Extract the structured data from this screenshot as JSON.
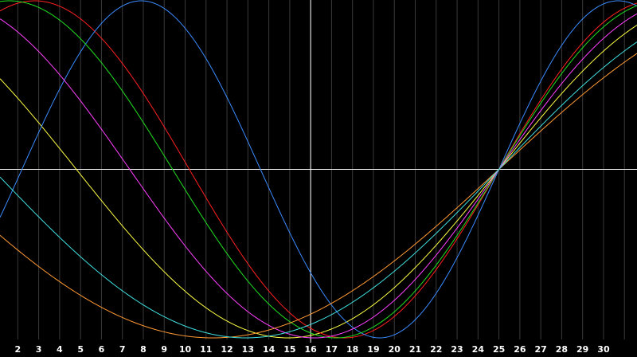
{
  "chart_data": {
    "type": "line",
    "x_ticks": [
      "2",
      "3",
      "4",
      "5",
      "6",
      "7",
      "8",
      "9",
      "10",
      "11",
      "12",
      "13",
      "14",
      "15",
      "16",
      "17",
      "18",
      "19",
      "20",
      "21",
      "22",
      "23",
      "24",
      "25",
      "26",
      "27",
      "28",
      "29",
      "30"
    ],
    "xlim": [
      1.15,
      31.6
    ],
    "ylim": [
      -1,
      1
    ],
    "crosshair": {
      "x": 16,
      "y": 0
    },
    "grid": true,
    "background": "#000000",
    "series": [
      {
        "color": "#ffff44",
        "phase": 0.98,
        "period": 40.4,
        "x0": 1.15,
        "x1": 31.6
      },
      {
        "color": "#ff2020",
        "phase": 1.29,
        "period": 29.6,
        "x0": 1.15,
        "x1": 31.6
      },
      {
        "color": "#3a8cff",
        "phase": 0.0,
        "period": 22.8,
        "x0": 1.15,
        "x1": 31.6
      },
      {
        "color": "#20e020",
        "phase": -1.69,
        "period": 31.2,
        "x0": 1.15,
        "x1": 31.6
      },
      {
        "color": "#ff40ff",
        "phase": -1.69,
        "period": 35.3,
        "x0": 1.15,
        "x1": 31.6
      },
      {
        "color": "#ff9933",
        "phase": -1.69,
        "period": 54.7,
        "x0": 1.15,
        "x1": 31.6
      },
      {
        "color": "#40e0e0",
        "phase": 0.0,
        "period": 48.4,
        "x0": 1.15,
        "x1": 31.6
      }
    ],
    "anchor_x": 25
  }
}
